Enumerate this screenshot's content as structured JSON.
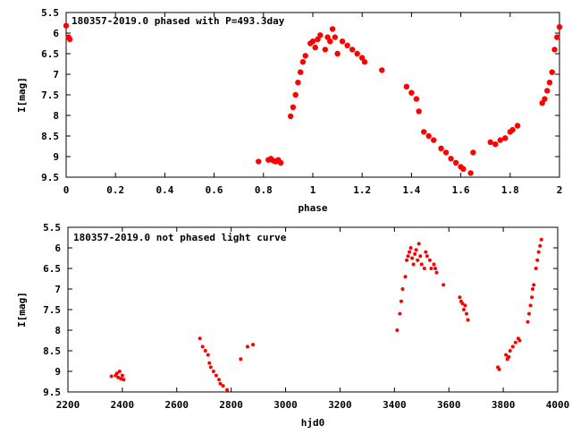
{
  "chart_data": [
    {
      "type": "scatter",
      "title": "180357-2019.0 phased with P=493.3day",
      "xlabel": "phase",
      "ylabel": "I[mag]",
      "xlim": [
        0,
        2
      ],
      "ylim": [
        9.5,
        5.5
      ],
      "y_inverted": true,
      "x_ticks": [
        "0",
        "0.2",
        "0.4",
        "0.6",
        "0.8",
        "1",
        "1.2",
        "1.4",
        "1.6",
        "1.8",
        "2"
      ],
      "y_ticks": [
        "5.5",
        "6",
        "6.5",
        "7",
        "7.5",
        "8",
        "8.5",
        "9",
        "9.5"
      ],
      "marker_color": "#ff0000",
      "grid": false,
      "series": [
        {
          "x": [
            0.0,
            0.01,
            0.015,
            0.78,
            0.82,
            0.83,
            0.84,
            0.85,
            0.86,
            0.87,
            0.91,
            0.92,
            0.93,
            0.94,
            0.95,
            0.96,
            0.97,
            0.99,
            1.0,
            1.01,
            1.02,
            1.03,
            1.05,
            1.06,
            1.07,
            1.08,
            1.09,
            1.1,
            1.12,
            1.14,
            1.16,
            1.18,
            1.2,
            1.21,
            1.28,
            1.38,
            1.4,
            1.42,
            1.43,
            1.45,
            1.47,
            1.49,
            1.52,
            1.54,
            1.56,
            1.58,
            1.6,
            1.61,
            1.64,
            1.65,
            1.72,
            1.74,
            1.76,
            1.78,
            1.8,
            1.81,
            1.83,
            1.93,
            1.94,
            1.95,
            1.96,
            1.97,
            1.98,
            1.99,
            2.0
          ],
          "y": [
            5.82,
            6.1,
            6.15,
            9.12,
            9.08,
            9.05,
            9.1,
            9.12,
            9.08,
            9.15,
            8.02,
            7.8,
            7.5,
            7.2,
            6.95,
            6.7,
            6.55,
            6.25,
            6.2,
            6.35,
            6.15,
            6.05,
            6.4,
            6.1,
            6.2,
            5.9,
            6.1,
            6.5,
            6.2,
            6.3,
            6.4,
            6.5,
            6.6,
            6.7,
            6.9,
            7.3,
            7.45,
            7.6,
            7.9,
            8.4,
            8.5,
            8.6,
            8.8,
            8.9,
            9.05,
            9.15,
            9.25,
            9.3,
            9.4,
            8.9,
            8.65,
            8.7,
            8.6,
            8.55,
            8.4,
            8.35,
            8.25,
            7.7,
            7.6,
            7.4,
            7.2,
            6.95,
            6.4,
            6.1,
            5.85
          ]
        }
      ]
    },
    {
      "type": "scatter",
      "title": "180357-2019.0 not phased light curve",
      "xlabel": "hjd0",
      "ylabel": "I[mag]",
      "xlim": [
        2200,
        4000
      ],
      "ylim": [
        9.5,
        5.5
      ],
      "y_inverted": true,
      "x_ticks": [
        "2200",
        "2400",
        "2600",
        "2800",
        "3000",
        "3200",
        "3400",
        "3600",
        "3800",
        "4000"
      ],
      "y_ticks": [
        "5.5",
        "6",
        "6.5",
        "7",
        "7.5",
        "8",
        "8.5",
        "9",
        "9.5"
      ],
      "marker_color": "#ff0000",
      "grid": false,
      "series": [
        {
          "x": [
            2360,
            2375,
            2380,
            2385,
            2390,
            2395,
            2400,
            2405,
            2685,
            2695,
            2705,
            2715,
            2720,
            2725,
            2735,
            2745,
            2755,
            2760,
            2770,
            2785,
            2835,
            2860,
            2880,
            3410,
            3420,
            3425,
            3430,
            3440,
            3445,
            3450,
            3455,
            3460,
            3465,
            3470,
            3475,
            3480,
            3485,
            3490,
            3495,
            3500,
            3510,
            3515,
            3520,
            3530,
            3535,
            3545,
            3550,
            3555,
            3580,
            3640,
            3645,
            3650,
            3655,
            3660,
            3665,
            3670,
            3780,
            3785,
            3810,
            3815,
            3820,
            3825,
            3835,
            3845,
            3855,
            3860,
            3890,
            3895,
            3900,
            3905,
            3908,
            3912,
            3920,
            3925,
            3930,
            3935,
            3940
          ],
          "y": [
            9.12,
            9.1,
            9.05,
            9.15,
            9.0,
            9.18,
            9.1,
            9.2,
            8.2,
            8.4,
            8.5,
            8.6,
            8.8,
            8.9,
            9.0,
            9.1,
            9.2,
            9.3,
            9.35,
            9.45,
            8.7,
            8.4,
            8.35,
            8.0,
            7.6,
            7.3,
            7.0,
            6.7,
            6.3,
            6.2,
            6.1,
            6.0,
            6.25,
            6.4,
            6.15,
            6.05,
            6.3,
            5.9,
            6.2,
            6.4,
            6.5,
            6.1,
            6.2,
            6.3,
            6.5,
            6.4,
            6.5,
            6.6,
            6.9,
            7.2,
            7.3,
            7.35,
            7.5,
            7.4,
            7.6,
            7.75,
            8.9,
            8.95,
            8.6,
            8.7,
            8.65,
            8.5,
            8.4,
            8.3,
            8.2,
            8.25,
            7.8,
            7.6,
            7.4,
            7.2,
            7.0,
            6.9,
            6.5,
            6.3,
            6.1,
            5.95,
            5.8
          ]
        }
      ]
    }
  ]
}
